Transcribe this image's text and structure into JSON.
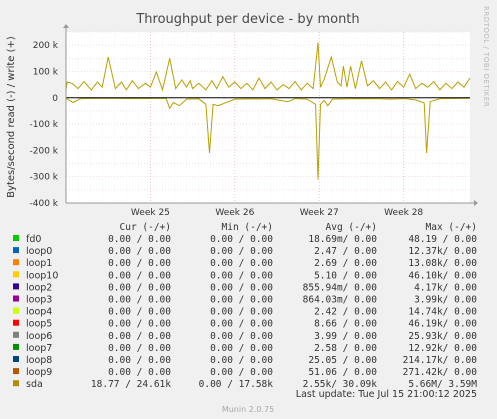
{
  "chart_data": {
    "type": "line",
    "title": "Throughput per device - by month",
    "ylabel": "Bytes/second read (-) / write (+)",
    "ylim": [
      -400000,
      250000
    ],
    "yticks": [
      {
        "value": 200000,
        "label": "200 k"
      },
      {
        "value": 100000,
        "label": "100 k"
      },
      {
        "value": 0,
        "label": "0"
      },
      {
        "value": -100000,
        "label": "-100 k"
      },
      {
        "value": -200000,
        "label": "-200 k"
      },
      {
        "value": -300000,
        "label": "-300 k"
      },
      {
        "value": -400000,
        "label": "-400 k"
      }
    ],
    "xlim": [
      0,
      33.5
    ],
    "xticks": [
      {
        "value": 7,
        "label": "Week 25"
      },
      {
        "value": 14,
        "label": "Week 26"
      },
      {
        "value": 21,
        "label": "Week 27"
      },
      {
        "value": 28,
        "label": "Week 28"
      }
    ],
    "grid": true,
    "series": [
      {
        "name": "sda",
        "color": "#b8a000",
        "write_x": [
          0,
          0.1,
          0.5,
          1.0,
          1.5,
          2.1,
          2.6,
          3.0,
          3.5,
          4.1,
          4.6,
          5.0,
          5.5,
          6.0,
          6.6,
          7.0,
          7.5,
          8.0,
          8.6,
          9.1,
          9.6,
          10.0,
          10.3,
          10.5,
          11.0,
          11.6,
          12.1,
          12.5,
          13.0,
          13.5,
          14.0,
          14.5,
          15.0,
          15.5,
          16.0,
          16.5,
          17.0,
          17.5,
          18.0,
          18.5,
          19.0,
          19.5,
          20.0,
          20.5,
          20.9,
          21.1,
          21.4,
          22.0,
          22.5,
          22.8,
          23.0,
          23.3,
          23.6,
          24.0,
          24.5,
          25.0,
          25.5,
          26.0,
          26.5,
          27.0,
          27.5,
          28.0,
          28.5,
          29.0,
          29.5,
          30.0,
          30.5,
          31.0,
          31.5,
          32.0,
          32.5,
          33.0,
          33.5
        ],
        "write_y": [
          30000,
          60000,
          55000,
          35000,
          62000,
          30000,
          60000,
          40000,
          155000,
          35000,
          60000,
          30000,
          65000,
          35000,
          55000,
          40000,
          98000,
          30000,
          150000,
          35000,
          68000,
          40000,
          65000,
          35000,
          55000,
          30000,
          65000,
          35000,
          80000,
          40000,
          60000,
          35000,
          55000,
          30000,
          75000,
          35000,
          60000,
          30000,
          50000,
          35000,
          62000,
          30000,
          55000,
          35000,
          210000,
          40000,
          70000,
          155000,
          60000,
          45000,
          120000,
          40000,
          120000,
          35000,
          140000,
          45000,
          65000,
          35000,
          60000,
          30000,
          62000,
          40000,
          90000,
          35000,
          55000,
          40000,
          62000,
          30000,
          55000,
          35000,
          60000,
          40000,
          75000
        ],
        "read_x": [
          0,
          0.6,
          1.2,
          3.0,
          6.0,
          8.3,
          8.6,
          8.9,
          9.4,
          10.0,
          11.0,
          11.6,
          11.9,
          12.2,
          12.6,
          14.0,
          17.0,
          18.4,
          19.0,
          20.0,
          20.7,
          20.9,
          21.1,
          21.4,
          21.7,
          22.1,
          24.0,
          26.0,
          27.0,
          28.0,
          29.0,
          29.7,
          29.9,
          30.2,
          31.0,
          33.5
        ],
        "read_y": [
          -2000,
          -18000,
          -3000,
          -2000,
          -3000,
          -2000,
          -40000,
          -18000,
          -30000,
          -5000,
          -4000,
          -25000,
          -210000,
          -25000,
          -30000,
          -5000,
          -4000,
          -15000,
          -3000,
          -5000,
          -25000,
          -310000,
          -25000,
          -10000,
          -30000,
          -5000,
          -3000,
          -4000,
          -5000,
          -3000,
          -8000,
          -20000,
          -210000,
          -15000,
          -3000,
          -2000
        ]
      }
    ],
    "legend_placement": "bottom",
    "table_headers": [
      "Cur (-/+)",
      "Min (-/+)",
      "Avg (-/+)",
      "Max (-/+)"
    ],
    "legend": [
      {
        "name": "fd0",
        "color": "#00cc00",
        "cur": "0.00 /  0.00",
        "min": "0.00 /  0.00",
        "avg": "18.69m/  0.00",
        "max": "48.19 /  0.00"
      },
      {
        "name": "loop0",
        "color": "#0066b3",
        "cur": "0.00 /  0.00",
        "min": "0.00 /  0.00",
        "avg": "2.47 /  0.00",
        "max": "12.37k/  0.00"
      },
      {
        "name": "loop1",
        "color": "#ff8000",
        "cur": "0.00 /  0.00",
        "min": "0.00 /  0.00",
        "avg": "2.69 /  0.00",
        "max": "13.08k/  0.00"
      },
      {
        "name": "loop10",
        "color": "#ffcc00",
        "cur": "0.00 /  0.00",
        "min": "0.00 /  0.00",
        "avg": "5.10 /  0.00",
        "max": "46.10k/  0.00"
      },
      {
        "name": "loop2",
        "color": "#330099",
        "cur": "0.00 /  0.00",
        "min": "0.00 /  0.00",
        "avg": "855.94m/  0.00",
        "max": "4.17k/  0.00"
      },
      {
        "name": "loop3",
        "color": "#990099",
        "cur": "0.00 /  0.00",
        "min": "0.00 /  0.00",
        "avg": "864.03m/  0.00",
        "max": "3.99k/  0.00"
      },
      {
        "name": "loop4",
        "color": "#ccff00",
        "cur": "0.00 /  0.00",
        "min": "0.00 /  0.00",
        "avg": "2.42 /  0.00",
        "max": "14.74k/  0.00"
      },
      {
        "name": "loop5",
        "color": "#ff0000",
        "cur": "0.00 /  0.00",
        "min": "0.00 /  0.00",
        "avg": "8.66 /  0.00",
        "max": "46.19k/  0.00"
      },
      {
        "name": "loop6",
        "color": "#808080",
        "cur": "0.00 /  0.00",
        "min": "0.00 /  0.00",
        "avg": "3.99 /  0.00",
        "max": "25.93k/  0.00"
      },
      {
        "name": "loop7",
        "color": "#008f00",
        "cur": "0.00 /  0.00",
        "min": "0.00 /  0.00",
        "avg": "2.58 /  0.00",
        "max": "12.92k/  0.00"
      },
      {
        "name": "loop8",
        "color": "#00487d",
        "cur": "0.00 /  0.00",
        "min": "0.00 /  0.00",
        "avg": "25.05 /  0.00",
        "max": "214.17k/  0.00"
      },
      {
        "name": "loop9",
        "color": "#b35a00",
        "cur": "0.00 /  0.00",
        "min": "0.00 /  0.00",
        "avg": "51.06 /  0.00",
        "max": "271.42k/  0.00"
      },
      {
        "name": "sda",
        "color": "#b38f00",
        "cur": "18.77 / 24.61k",
        "min": "0.00 / 17.58k",
        "avg": "2.55k/ 30.09k",
        "max": "5.66M/  3.59M"
      }
    ],
    "last_update": "Last update:  Tue Jul 15 21:00:12 2025",
    "watermark": "RRDTOOL / TOBI OETIKER",
    "footer": "Munin 2.0.75"
  }
}
